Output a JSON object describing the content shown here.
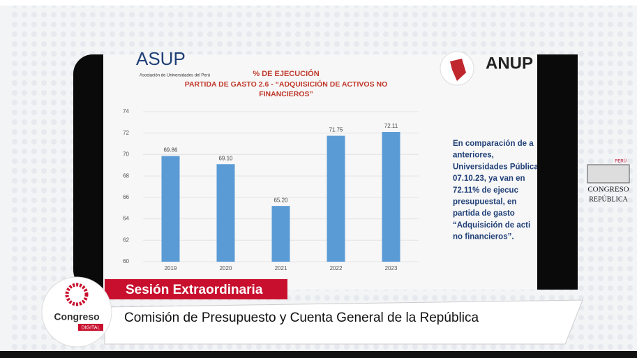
{
  "slide": {
    "asup_logo": "ASUP",
    "asup_name": "Asociación de Universidades del Perú",
    "anup_logo": "ANUP",
    "side_text": [
      "En comparación de a",
      "anteriores,",
      "Universidades Pública",
      "07.10.23, ya van en",
      "72.11% de ejecuc",
      "presupuestal, en",
      "partida de gasto",
      "“Adquisición de acti",
      "no financieros”."
    ]
  },
  "chart_data": {
    "type": "bar",
    "title": "% DE EJECUCIÓN",
    "subtitle": "PARTIDA DE GASTO 2.6 - “ADQUISICIÓN DE ACTIVOS NO FINANCIEROS”",
    "categories": [
      "2019",
      "2020",
      "2021",
      "2022",
      "2023"
    ],
    "values": [
      69.86,
      69.1,
      65.2,
      71.75,
      72.11
    ],
    "value_labels": [
      "69.86",
      "69.10",
      "65.20",
      "71.75",
      "72.11"
    ],
    "color": "#5b9bd5",
    "ylim": [
      60,
      74
    ],
    "yticks": [
      60,
      62,
      64,
      66,
      68,
      70,
      72,
      74
    ],
    "grid": true
  },
  "banner": {
    "session": "Sesión Extraordinaria",
    "commission": "Comisión de Presupuesto y Cuenta General de la República",
    "logo": "Congreso",
    "logo_tag": "DIGITAL"
  },
  "side_logo": {
    "top": "PERÚ",
    "name": "CONGRESO",
    "sub": "REPÚBLICA"
  }
}
